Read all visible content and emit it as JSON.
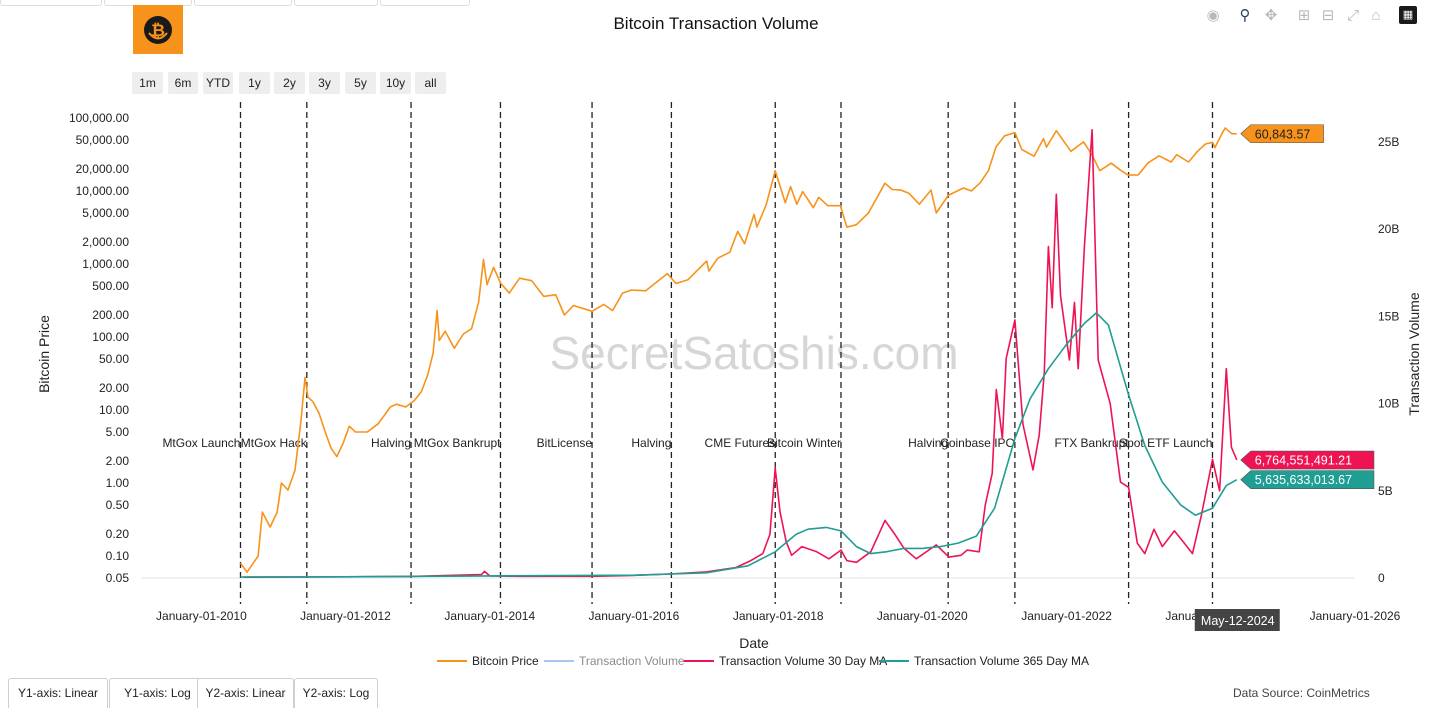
{
  "title": "Bitcoin Transaction Volume",
  "source": "Data Source: CoinMetrics",
  "watermark": "SecretSatoshis.com",
  "colors": {
    "price": "#f7931a",
    "volume": "#a6c8f0",
    "ma30": "#ee1454",
    "ma365": "#1f9e93",
    "grid": "#e6eef5",
    "dash": "#222222",
    "hover": "#444444"
  },
  "range_buttons": [
    "1m",
    "6m",
    "YTD",
    "1y",
    "2y",
    "3y",
    "5y",
    "10y",
    "all"
  ],
  "yaxis_buttons": [
    "Y1-axis: Linear",
    "Y1-axis: Log",
    "Y2-axis: Linear",
    "Y2-axis: Log"
  ],
  "modebar_icons": [
    "camera-icon",
    "zoom-icon",
    "pan-icon",
    "zoom-in-icon",
    "zoom-out-icon",
    "autoscale-icon",
    "reset-icon",
    "plotly-logo-icon"
  ],
  "chart_data": {
    "type": "line",
    "title": "Bitcoin Transaction Volume",
    "xlabel": "Date",
    "ylabel": "Bitcoin Price",
    "y2label": "Transaction Volume",
    "x_ticks": [
      "2010-01-01",
      "2012-01-01",
      "2014-01-01",
      "2016-01-01",
      "2018-01-01",
      "2020-01-01",
      "2022-01-01",
      "2024-01-01",
      "2026-01-01"
    ],
    "x_tick_labels": [
      "January-01-2010",
      "January-01-2012",
      "January-01-2014",
      "January-01-2016",
      "January-01-2018",
      "January-01-2020",
      "January-01-2022",
      "January-01-2024",
      "January-01-2026"
    ],
    "xlim": [
      "2009-03-01",
      "2026-01-01"
    ],
    "y1_scale": "log",
    "y1_ticks": [
      0.05,
      0.1,
      0.2,
      0.5,
      1,
      2,
      5,
      10,
      20,
      50,
      100,
      200,
      500,
      1000,
      2000,
      5000,
      10000,
      20000,
      50000,
      100000
    ],
    "y1_tick_labels": [
      "0.05",
      "0.10",
      "0.20",
      "0.50",
      "1.00",
      "2.00",
      "5.00",
      "10.00",
      "20.00",
      "50.00",
      "100.00",
      "200.00",
      "500.00",
      "1,000.00",
      "2,000.00",
      "5,000.00",
      "10,000.00",
      "20,000.00",
      "50,000.00",
      "100,000.00"
    ],
    "y2_ticks": [
      0,
      5000000000,
      10000000000,
      15000000000,
      20000000000,
      25000000000
    ],
    "y2_tick_labels": [
      "0",
      "5B",
      "10B",
      "15B",
      "20B",
      "25B"
    ],
    "legend": [
      "Bitcoin Price",
      "Transaction Volume",
      "Transaction Volume 30 Day MA",
      "Transaction Volume 365 Day MA"
    ],
    "legend_position": "bottom",
    "grid": false,
    "events": [
      {
        "date": "2010-07-18",
        "label": "MtGox Launch"
      },
      {
        "date": "2011-06-19",
        "label": "MtGox Hack"
      },
      {
        "date": "2012-11-28",
        "label": "Halving"
      },
      {
        "date": "2014-02-24",
        "label": "MtGox Bankrupt"
      },
      {
        "date": "2015-06-03",
        "label": "BitLicense"
      },
      {
        "date": "2016-07-09",
        "label": "Halving"
      },
      {
        "date": "2017-12-17",
        "label": "CME Futures"
      },
      {
        "date": "2018-11-15",
        "label": "Bitcoin Winter"
      },
      {
        "date": "2020-05-11",
        "label": "Halving"
      },
      {
        "date": "2021-04-14",
        "label": "Coinbase IPO"
      },
      {
        "date": "2022-11-11",
        "label": "FTX Bankrupt"
      },
      {
        "date": "2024-01-10",
        "label": "Spot ETF Launch"
      }
    ],
    "series": [
      {
        "name": "Bitcoin Price",
        "axis": "y1",
        "points": [
          [
            "2010-07-18",
            0.08
          ],
          [
            "2010-08-20",
            0.06
          ],
          [
            "2010-10-15",
            0.1
          ],
          [
            "2010-11-06",
            0.4
          ],
          [
            "2010-12-15",
            0.25
          ],
          [
            "2011-01-20",
            0.4
          ],
          [
            "2011-02-10",
            1.0
          ],
          [
            "2011-03-15",
            0.8
          ],
          [
            "2011-04-20",
            1.5
          ],
          [
            "2011-05-20",
            7
          ],
          [
            "2011-06-10",
            28
          ],
          [
            "2011-06-25",
            15
          ],
          [
            "2011-07-20",
            13
          ],
          [
            "2011-08-20",
            9
          ],
          [
            "2011-09-20",
            5
          ],
          [
            "2011-10-20",
            3
          ],
          [
            "2011-11-18",
            2.3
          ],
          [
            "2011-12-20",
            3.5
          ],
          [
            "2012-01-20",
            6
          ],
          [
            "2012-02-20",
            5
          ],
          [
            "2012-04-20",
            5
          ],
          [
            "2012-06-15",
            6.5
          ],
          [
            "2012-08-15",
            11
          ],
          [
            "2012-09-15",
            12
          ],
          [
            "2012-11-01",
            11
          ],
          [
            "2012-12-15",
            13.5
          ],
          [
            "2013-01-20",
            18
          ],
          [
            "2013-02-20",
            30
          ],
          [
            "2013-03-20",
            60
          ],
          [
            "2013-04-09",
            230
          ],
          [
            "2013-04-20",
            90
          ],
          [
            "2013-05-20",
            120
          ],
          [
            "2013-07-05",
            70
          ],
          [
            "2013-08-20",
            110
          ],
          [
            "2013-10-01",
            130
          ],
          [
            "2013-11-05",
            300
          ],
          [
            "2013-11-30",
            1150
          ],
          [
            "2013-12-18",
            520
          ],
          [
            "2014-01-20",
            900
          ],
          [
            "2014-02-24",
            550
          ],
          [
            "2014-04-10",
            400
          ],
          [
            "2014-06-01",
            640
          ],
          [
            "2014-08-01",
            590
          ],
          [
            "2014-10-01",
            360
          ],
          [
            "2014-12-01",
            380
          ],
          [
            "2015-01-14",
            200
          ],
          [
            "2015-03-01",
            270
          ],
          [
            "2015-06-03",
            225
          ],
          [
            "2015-08-01",
            280
          ],
          [
            "2015-09-15",
            230
          ],
          [
            "2015-11-04",
            400
          ],
          [
            "2015-12-20",
            440
          ],
          [
            "2016-03-01",
            430
          ],
          [
            "2016-06-18",
            740
          ],
          [
            "2016-08-02",
            540
          ],
          [
            "2016-10-01",
            610
          ],
          [
            "2017-01-04",
            1100
          ],
          [
            "2017-01-15",
            800
          ],
          [
            "2017-03-01",
            1200
          ],
          [
            "2017-05-01",
            1450
          ],
          [
            "2017-06-10",
            2800
          ],
          [
            "2017-07-15",
            1900
          ],
          [
            "2017-09-01",
            4800
          ],
          [
            "2017-09-15",
            3200
          ],
          [
            "2017-11-01",
            6500
          ],
          [
            "2017-12-17",
            19000
          ],
          [
            "2018-02-06",
            6900
          ],
          [
            "2018-03-05",
            11500
          ],
          [
            "2018-04-05",
            6600
          ],
          [
            "2018-05-05",
            9800
          ],
          [
            "2018-06-28",
            5900
          ],
          [
            "2018-07-25",
            8200
          ],
          [
            "2018-09-10",
            6300
          ],
          [
            "2018-11-12",
            6300
          ],
          [
            "2018-12-15",
            3200
          ],
          [
            "2019-02-01",
            3450
          ],
          [
            "2019-04-03",
            5000
          ],
          [
            "2019-06-26",
            12800
          ],
          [
            "2019-08-01",
            10500
          ],
          [
            "2019-09-15",
            10300
          ],
          [
            "2019-10-25",
            9300
          ],
          [
            "2019-12-17",
            6600
          ],
          [
            "2020-02-14",
            10300
          ],
          [
            "2020-03-12",
            5000
          ],
          [
            "2020-05-11",
            8700
          ],
          [
            "2020-07-27",
            11000
          ],
          [
            "2020-09-05",
            10000
          ],
          [
            "2020-10-21",
            13000
          ],
          [
            "2020-12-01",
            19000
          ],
          [
            "2021-01-08",
            40000
          ],
          [
            "2021-02-21",
            57000
          ],
          [
            "2021-04-14",
            63000
          ],
          [
            "2021-05-19",
            37000
          ],
          [
            "2021-07-20",
            30000
          ],
          [
            "2021-09-06",
            52000
          ],
          [
            "2021-09-21",
            40000
          ],
          [
            "2021-11-10",
            67000
          ],
          [
            "2022-01-23",
            35000
          ],
          [
            "2022-03-28",
            47000
          ],
          [
            "2022-05-10",
            31000
          ],
          [
            "2022-06-18",
            19000
          ],
          [
            "2022-08-15",
            24000
          ],
          [
            "2022-10-01",
            19300
          ],
          [
            "2022-11-09",
            16500
          ],
          [
            "2022-12-30",
            16600
          ],
          [
            "2023-02-16",
            24000
          ],
          [
            "2023-04-14",
            30400
          ],
          [
            "2023-06-15",
            25000
          ],
          [
            "2023-07-13",
            31400
          ],
          [
            "2023-09-11",
            25000
          ],
          [
            "2023-10-24",
            34500
          ],
          [
            "2023-12-05",
            44000
          ],
          [
            "2024-01-10",
            46500
          ],
          [
            "2024-01-23",
            39500
          ],
          [
            "2024-02-28",
            62000
          ],
          [
            "2024-03-14",
            73000
          ],
          [
            "2024-04-17",
            61000
          ],
          [
            "2024-05-12",
            60843.57
          ]
        ]
      },
      {
        "name": "Transaction Volume 30 Day MA",
        "axis": "y2",
        "points": [
          [
            "2010-08-01",
            45000000
          ],
          [
            "2011-06-19",
            55000000
          ],
          [
            "2012-11-28",
            90000000
          ],
          [
            "2013-11-20",
            200000000
          ],
          [
            "2013-12-05",
            380000000
          ],
          [
            "2014-01-01",
            120000000
          ],
          [
            "2014-06-01",
            100000000
          ],
          [
            "2015-06-01",
            100000000
          ],
          [
            "2016-01-01",
            150000000
          ],
          [
            "2016-07-01",
            230000000
          ],
          [
            "2017-01-01",
            350000000
          ],
          [
            "2017-06-01",
            600000000
          ],
          [
            "2017-08-15",
            1000000000
          ],
          [
            "2017-10-15",
            1400000000
          ],
          [
            "2017-11-20",
            2500000000
          ],
          [
            "2017-12-17",
            6300000000
          ],
          [
            "2018-01-10",
            3800000000
          ],
          [
            "2018-02-10",
            2100000000
          ],
          [
            "2018-03-10",
            1300000000
          ],
          [
            "2018-05-01",
            1800000000
          ],
          [
            "2018-07-15",
            1500000000
          ],
          [
            "2018-09-15",
            1100000000
          ],
          [
            "2018-11-15",
            1600000000
          ],
          [
            "2018-12-15",
            1000000000
          ],
          [
            "2019-02-01",
            900000000
          ],
          [
            "2019-04-15",
            1500000000
          ],
          [
            "2019-06-26",
            3300000000
          ],
          [
            "2019-08-15",
            2500000000
          ],
          [
            "2019-10-01",
            1700000000
          ],
          [
            "2019-12-01",
            1100000000
          ],
          [
            "2020-03-12",
            1900000000
          ],
          [
            "2020-05-15",
            1200000000
          ],
          [
            "2020-07-15",
            1300000000
          ],
          [
            "2020-08-15",
            1600000000
          ],
          [
            "2020-10-15",
            1500000000
          ],
          [
            "2020-11-15",
            4200000000
          ],
          [
            "2020-12-20",
            6000000000
          ],
          [
            "2021-01-10",
            10800000000
          ],
          [
            "2021-02-10",
            8000000000
          ],
          [
            "2021-03-01",
            12600000000
          ],
          [
            "2021-04-14",
            14800000000
          ],
          [
            "2021-05-25",
            8800000000
          ],
          [
            "2021-07-15",
            6200000000
          ],
          [
            "2021-08-15",
            8200000000
          ],
          [
            "2021-09-10",
            11800000000
          ],
          [
            "2021-10-01",
            19000000000
          ],
          [
            "2021-10-20",
            15500000000
          ],
          [
            "2021-11-10",
            22000000000
          ],
          [
            "2021-12-01",
            16200000000
          ],
          [
            "2022-01-15",
            12500000000
          ],
          [
            "2022-02-10",
            15800000000
          ],
          [
            "2022-03-01",
            12000000000
          ],
          [
            "2022-04-01",
            19000000000
          ],
          [
            "2022-05-10",
            25700000000
          ],
          [
            "2022-06-10",
            12500000000
          ],
          [
            "2022-08-10",
            10000000000
          ],
          [
            "2022-10-01",
            5500000000
          ],
          [
            "2022-11-11",
            5200000000
          ],
          [
            "2022-12-25",
            2000000000
          ],
          [
            "2023-02-01",
            1400000000
          ],
          [
            "2023-03-20",
            2800000000
          ],
          [
            "2023-05-01",
            1800000000
          ],
          [
            "2023-07-01",
            2700000000
          ],
          [
            "2023-08-20",
            2000000000
          ],
          [
            "2023-10-01",
            1400000000
          ],
          [
            "2023-11-15",
            3600000000
          ],
          [
            "2024-01-10",
            6800000000
          ],
          [
            "2024-02-15",
            5000000000
          ],
          [
            "2024-03-20",
            12000000000
          ],
          [
            "2024-04-15",
            7500000000
          ],
          [
            "2024-05-12",
            6764551491.21
          ]
        ]
      },
      {
        "name": "Transaction Volume 365 Day MA",
        "axis": "y2",
        "points": [
          [
            "2010-07-18",
            60000000
          ],
          [
            "2012-01-01",
            70000000
          ],
          [
            "2014-01-01",
            120000000
          ],
          [
            "2016-01-01",
            160000000
          ],
          [
            "2017-01-01",
            300000000
          ],
          [
            "2017-08-01",
            700000000
          ],
          [
            "2017-12-17",
            1500000000
          ],
          [
            "2018-04-01",
            2500000000
          ],
          [
            "2018-06-01",
            2800000000
          ],
          [
            "2018-09-01",
            2900000000
          ],
          [
            "2018-11-15",
            2700000000
          ],
          [
            "2019-02-01",
            1800000000
          ],
          [
            "2019-04-15",
            1400000000
          ],
          [
            "2019-07-01",
            1500000000
          ],
          [
            "2019-10-01",
            1700000000
          ],
          [
            "2020-01-01",
            1700000000
          ],
          [
            "2020-04-01",
            1800000000
          ],
          [
            "2020-07-01",
            2000000000
          ],
          [
            "2020-10-01",
            2400000000
          ],
          [
            "2021-01-01",
            4000000000
          ],
          [
            "2021-04-14",
            8000000000
          ],
          [
            "2021-07-01",
            10300000000
          ],
          [
            "2021-10-01",
            12000000000
          ],
          [
            "2022-01-01",
            13400000000
          ],
          [
            "2022-04-01",
            14600000000
          ],
          [
            "2022-06-01",
            15200000000
          ],
          [
            "2022-08-01",
            14500000000
          ],
          [
            "2022-11-11",
            10500000000
          ],
          [
            "2023-02-01",
            7600000000
          ],
          [
            "2023-05-01",
            5500000000
          ],
          [
            "2023-08-01",
            4200000000
          ],
          [
            "2023-10-15",
            3600000000
          ],
          [
            "2024-01-10",
            4000000000
          ],
          [
            "2024-03-20",
            5300000000
          ],
          [
            "2024-05-12",
            5635633013.67
          ]
        ]
      }
    ],
    "hover": {
      "date_label": "May-12-2024",
      "price_label": "60,843.57",
      "ma30_label": "6,764,551,491.21",
      "ma365_label": "5,635,633,013.67"
    }
  }
}
